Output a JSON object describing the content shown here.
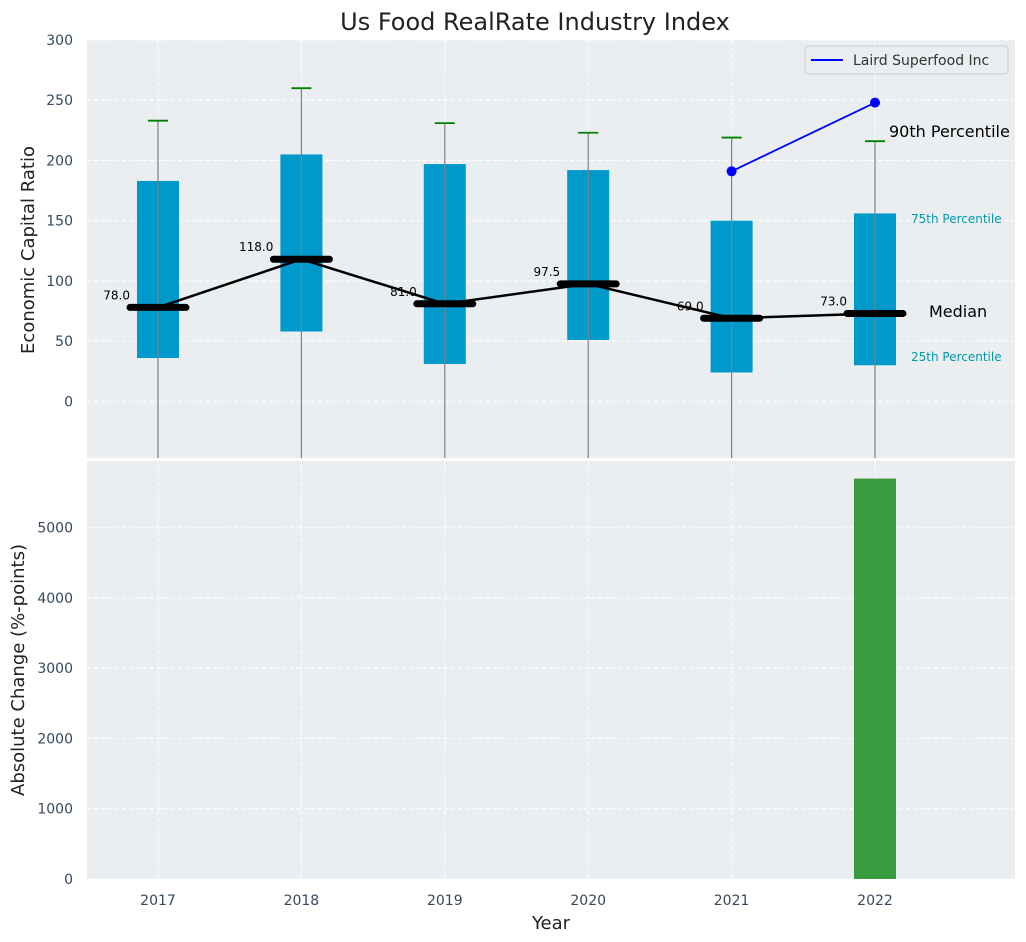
{
  "chart_data": [
    {
      "type": "box",
      "title": "Us Food RealRate Industry Index",
      "ylabel": "Economic Capital Ratio",
      "xlabel": "",
      "categories": [
        "2017",
        "2018",
        "2019",
        "2020",
        "2021",
        "2022"
      ],
      "yticks": [
        "0",
        "50",
        "100",
        "150",
        "200",
        "250",
        "300"
      ],
      "ylim": [
        -47,
        300
      ],
      "grid": true,
      "legend_position": "top-right",
      "boxes": [
        {
          "year": "2017",
          "p25": 36,
          "p75": 183,
          "median": 78,
          "median_label": "78.0",
          "p90": 233
        },
        {
          "year": "2018",
          "p25": 58,
          "p75": 205,
          "median": 118,
          "median_label": "118.0",
          "p90": 260
        },
        {
          "year": "2019",
          "p25": 31,
          "p75": 197,
          "median": 81,
          "median_label": "81.0",
          "p90": 231
        },
        {
          "year": "2020",
          "p25": 51,
          "p75": 192,
          "median": 97.5,
          "median_label": "97.5",
          "p90": 223
        },
        {
          "year": "2021",
          "p25": 24,
          "p75": 150,
          "median": 69,
          "median_label": "69.0",
          "p90": 219
        },
        {
          "year": "2022",
          "p25": 30,
          "p75": 156,
          "median": 73,
          "median_label": "73.0",
          "p90": 216
        }
      ],
      "series": [
        {
          "name": "Laird Superfood Inc",
          "x": [
            "2021",
            "2022"
          ],
          "values": [
            191,
            248
          ],
          "color": "#0000ff"
        }
      ],
      "annotations": {
        "p90": "90th Percentile",
        "p75": "75th Percentile",
        "median": "Median",
        "p25": "25th Percentile"
      },
      "colors": {
        "box": "#0099cc",
        "median_line": "#000000",
        "whisker_cap": "#008000",
        "whisker": "#808080",
        "annotation_small": "#0099aa",
        "panel_bg": "#eaeef0"
      }
    },
    {
      "type": "bar",
      "xlabel": "Year",
      "ylabel": "Absolute Change (%-points)",
      "categories": [
        "2017",
        "2018",
        "2019",
        "2020",
        "2021",
        "2022"
      ],
      "values": [
        0,
        0,
        0,
        0,
        0,
        5700
      ],
      "yticks": [
        "0",
        "1000",
        "2000",
        "3000",
        "4000",
        "5000"
      ],
      "ylim": [
        0,
        5950
      ],
      "grid": true,
      "colors": {
        "bar": "#3a9a3e"
      }
    }
  ]
}
